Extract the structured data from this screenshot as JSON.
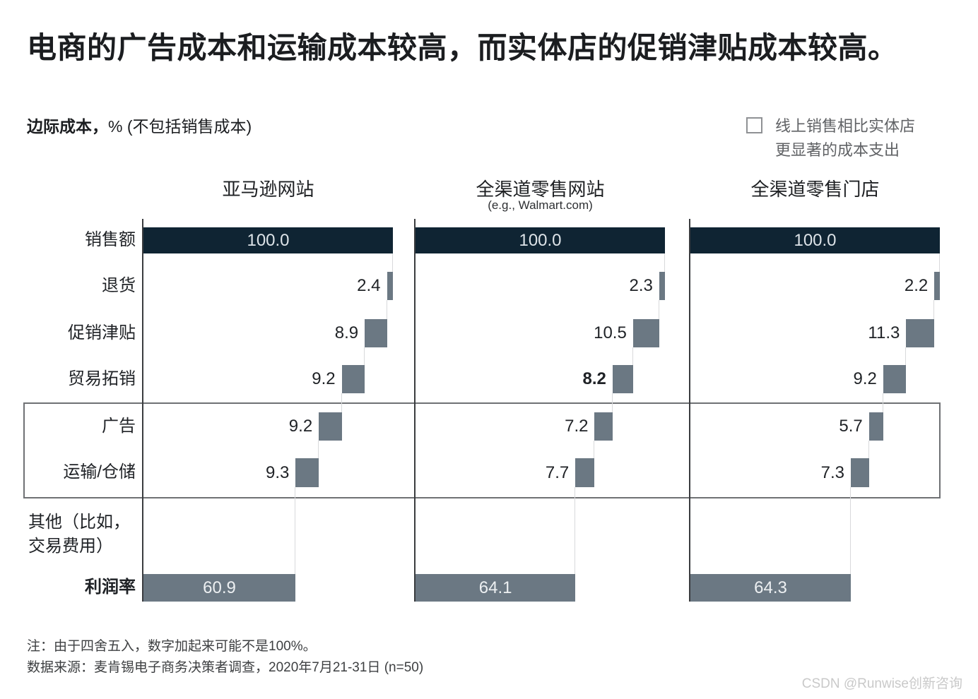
{
  "title": "电商的广告成本和运输成本较高，而实体店的促销津贴成本较高。",
  "subtitle": {
    "bold": "边际成本，",
    "rest": "% (不包括销售成本)"
  },
  "legend": {
    "line1": "线上销售相比实体店",
    "line2": "更显著的成本支出"
  },
  "chart_data": {
    "type": "waterfall",
    "unit": "%",
    "axis_caption": "边际成本，% (不包括销售成本)",
    "legend_note": "线上销售相比实体店更显著的成本支出",
    "rows": [
      "销售额",
      "退货",
      "促销津贴",
      "贸易拓销",
      "广告",
      "运输/仓储",
      "其他（比如，交易费用）",
      "利润率"
    ],
    "highlighted_rows": [
      "广告",
      "运输/仓储"
    ],
    "columns": [
      {
        "header": "亚马逊网站",
        "subheader": "",
        "values": [
          100.0,
          2.4,
          8.9,
          9.2,
          9.2,
          9.3,
          null,
          60.9
        ]
      },
      {
        "header": "全渠道零售网站",
        "subheader": "(e.g., Walmart.com)",
        "values": [
          100.0,
          2.3,
          10.5,
          8.2,
          7.2,
          7.7,
          null,
          64.1
        ],
        "bold_value_rows": [
          3
        ]
      },
      {
        "header": "全渠道零售门店",
        "subheader": "",
        "values": [
          100.0,
          2.2,
          11.3,
          9.2,
          5.7,
          7.3,
          null,
          64.3
        ]
      }
    ],
    "colors": {
      "sales_bar": "#0f2433",
      "cost_bar": "#6b7883",
      "margin_bar": "#6b7883"
    }
  },
  "notes": {
    "line1": "注：由于四舍五入，数字加起来可能不是100%。",
    "line2": "数据来源：麦肯锡电子商务决策者调查，2020年7月21-31日 (n=50)"
  },
  "watermark": "CSDN @Runwise创新咨询"
}
